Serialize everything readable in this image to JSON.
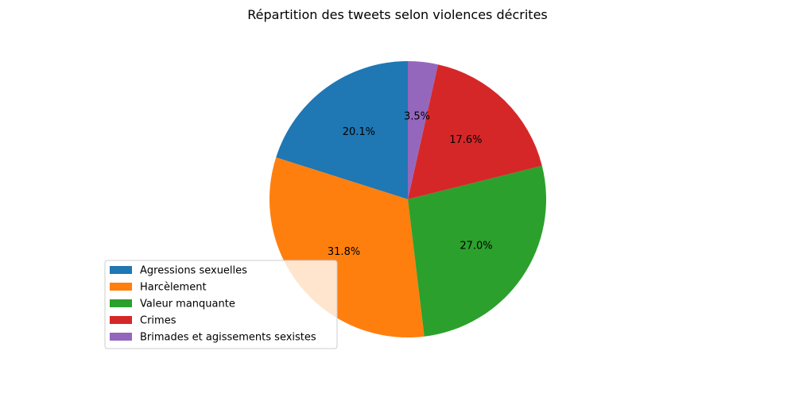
{
  "chart_data": {
    "type": "pie",
    "title": "Répartition des tweets selon violences décrites",
    "start_angle_deg": 90,
    "direction": "counterclockwise",
    "legend_position": "lower-left",
    "slices": [
      {
        "label": "Agressions sexuelles",
        "value": 20.1,
        "pct_label": "20.1%",
        "color": "#1f77b4"
      },
      {
        "label": "Harcèlement",
        "value": 31.8,
        "pct_label": "31.8%",
        "color": "#ff7f0e"
      },
      {
        "label": "Valeur manquante",
        "value": 27.0,
        "pct_label": "27.0%",
        "color": "#2ca02c"
      },
      {
        "label": "Crimes",
        "value": 17.6,
        "pct_label": "17.6%",
        "color": "#d62728"
      },
      {
        "label": "Brimades et agissements sexistes",
        "value": 3.5,
        "pct_label": "3.5%",
        "color": "#9467bd"
      }
    ]
  }
}
